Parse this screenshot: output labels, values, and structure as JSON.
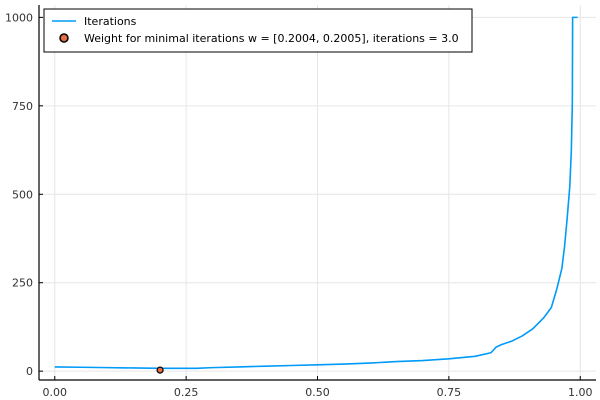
{
  "chart_data": {
    "type": "line",
    "title": "",
    "xlabel": "",
    "ylabel": "",
    "xlim": [
      -0.03,
      1.03
    ],
    "ylim": [
      -25,
      1035
    ],
    "xticks": [
      0.0,
      0.25,
      0.5,
      0.75,
      1.0
    ],
    "xtick_labels": [
      "0.00",
      "0.25",
      "0.50",
      "0.75",
      "1.00"
    ],
    "yticks": [
      0,
      250,
      500,
      750,
      1000
    ],
    "ytick_labels": [
      "0",
      "250",
      "500",
      "750",
      "1000"
    ],
    "grid": true,
    "legend_position": "top-left",
    "series": [
      {
        "name": "Iterations",
        "kind": "line",
        "color": "#009af9",
        "x": [
          0.0,
          0.05,
          0.1,
          0.15,
          0.2,
          0.25,
          0.27,
          0.3,
          0.35,
          0.4,
          0.45,
          0.5,
          0.55,
          0.6,
          0.65,
          0.7,
          0.75,
          0.8,
          0.83,
          0.84,
          0.85,
          0.87,
          0.89,
          0.91,
          0.93,
          0.945,
          0.955,
          0.965,
          0.97,
          0.975,
          0.98,
          0.983,
          0.985,
          0.9855,
          0.99,
          0.995
        ],
        "y": [
          12,
          11,
          10,
          9,
          8,
          8,
          8,
          10,
          12,
          14,
          16,
          18,
          20,
          23,
          27,
          30,
          35,
          42,
          52,
          68,
          75,
          85,
          100,
          120,
          150,
          180,
          230,
          290,
          350,
          430,
          520,
          620,
          760,
          1000,
          1000,
          1000
        ]
      },
      {
        "name": "Weight for minimal iterations w = [0.2004, 0.2005], iterations = 3.0",
        "kind": "scatter",
        "color": "#e26f46",
        "x": [
          0.20045
        ],
        "y": [
          3.0
        ]
      }
    ]
  }
}
